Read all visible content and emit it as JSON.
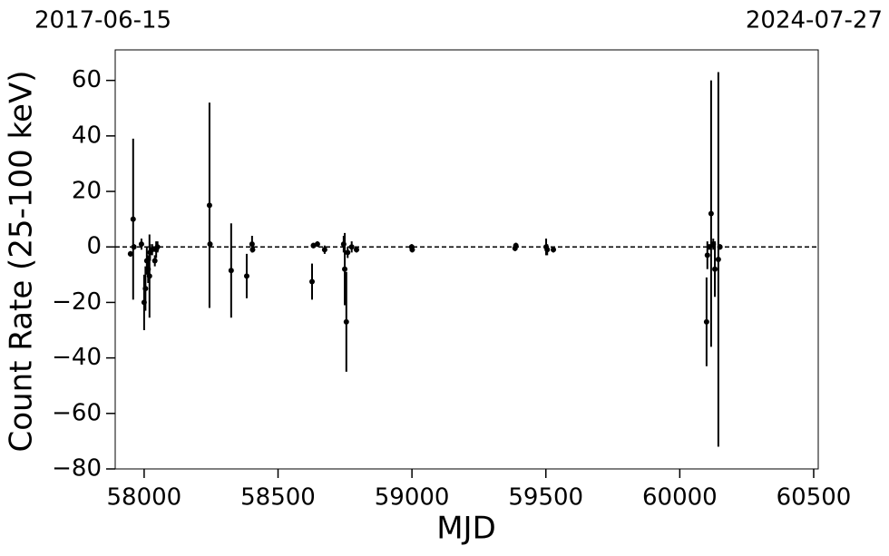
{
  "chart_data": {
    "type": "scatter",
    "annotations": [
      "2017-06-15",
      "2024-07-27"
    ],
    "xlabel": "MJD",
    "ylabel": "Count Rate (25-100 keV)",
    "x": [
      57949,
      57959,
      57962,
      57990,
      58000,
      58005,
      58010,
      58015,
      58020,
      58022,
      58030,
      58040,
      58045,
      58050,
      58244,
      58246,
      58325,
      58383,
      58403,
      58405,
      58627,
      58632,
      58647,
      58674,
      58745,
      58749,
      58755,
      58760,
      58775,
      58793,
      58999,
      59001,
      59385,
      59388,
      59501,
      59505,
      59528,
      60100,
      60103,
      60110,
      60117,
      60125,
      60131,
      60144,
      60150
    ],
    "values": [
      -2.5,
      10,
      0,
      1,
      -20,
      -15,
      -5,
      -8,
      -10.5,
      -2,
      -1,
      -5,
      -1,
      0,
      15,
      1,
      -8.5,
      -10.5,
      1,
      -1,
      -12.5,
      0.5,
      1,
      -1,
      1,
      -8,
      -27,
      -2,
      0,
      -1,
      0,
      -1,
      -0.5,
      0.5,
      0,
      -1,
      -1,
      -27,
      -3,
      0,
      12,
      1,
      -8,
      -4.5,
      0
    ],
    "errors": [
      1,
      29,
      1,
      2,
      10,
      8,
      5,
      5,
      15,
      3,
      2,
      2,
      3,
      2,
      37,
      1,
      17,
      8,
      3,
      1,
      6.5,
      1,
      1,
      1.5,
      3,
      13,
      18,
      2,
      2,
      1,
      1,
      1,
      1,
      1,
      3,
      2,
      1,
      16,
      5,
      1,
      48,
      2,
      10,
      67.5,
      1
    ],
    "color": "#000000",
    "hline": 0,
    "xlim": [
      57892,
      60517
    ],
    "ylim": [
      -80,
      71
    ],
    "xticks": [
      58000,
      58500,
      59000,
      59500,
      60000,
      60500
    ],
    "yticks": [
      {
        "value": -80,
        "label": "−80"
      },
      {
        "value": -60,
        "label": "−60"
      },
      {
        "value": -40,
        "label": "−40"
      },
      {
        "value": -20,
        "label": "−20"
      },
      0,
      20,
      40,
      60
    ],
    "grid": false
  }
}
